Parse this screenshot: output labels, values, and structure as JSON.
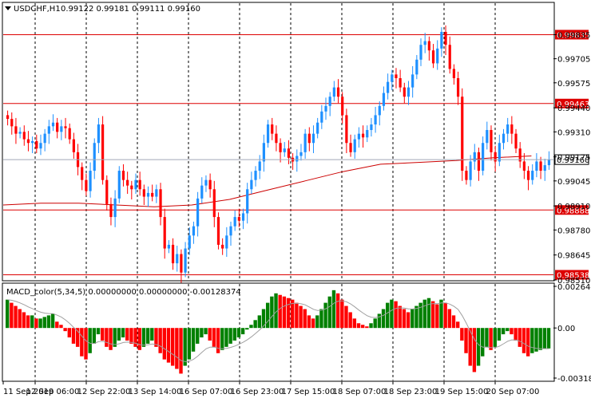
{
  "header": {
    "symbol_label": "USDCHF,H1",
    "ohlc": "0.99122 0.99181 0.99111 0.99160"
  },
  "macd": {
    "label": "MACD_color(5,34,5) 0.00000000 0.00000000 -0.00128374"
  },
  "colors": {
    "bull": "#1e90ff",
    "bear": "#ff0000",
    "ma": "#cc0000",
    "level": "#dd0000",
    "hist_up": "#008000",
    "hist_down": "#ff0000",
    "signal": "#a0a0a0",
    "grid": "#000000",
    "bid_line": "#a0a8b8"
  },
  "chart_data": [
    {
      "type": "candlestick",
      "title": "USDCHF,H1",
      "ylim": [
        0.9851,
        1.00005
      ],
      "price_ticks": [
        "0.99835",
        "0.99705",
        "0.99575",
        "0.99440",
        "0.99310",
        "0.99175",
        "0.99045",
        "0.98910",
        "0.98780",
        "0.98645",
        "0.98510"
      ],
      "time_labels": [
        "11 Sep 2019",
        "12 Sep 06:00",
        "12 Sep 22:00",
        "13 Sep 14:00",
        "16 Sep 07:00",
        "16 Sep 23:00",
        "17 Sep 15:00",
        "18 Sep 07:00",
        "18 Sep 23:00",
        "19 Sep 15:00",
        "20 Sep 07:00"
      ],
      "current_price": "0.99160",
      "levels": [
        {
          "value": 0.99835,
          "label": "0.99835"
        },
        {
          "value": 0.99463,
          "label": "0.99463"
        },
        {
          "value": 0.98888,
          "label": "0.98888"
        },
        {
          "value": 0.98538,
          "label": "0.98538"
        }
      ],
      "closes": [
        0.9938,
        0.9934,
        0.993,
        0.9931,
        0.9927,
        0.9925,
        0.9926,
        0.9922,
        0.9925,
        0.993,
        0.9934,
        0.9936,
        0.9931,
        0.9934,
        0.9933,
        0.9927,
        0.992,
        0.9912,
        0.9905,
        0.9899,
        0.991,
        0.9925,
        0.9935,
        0.9905,
        0.9892,
        0.9885,
        0.9895,
        0.991,
        0.9905,
        0.9902,
        0.99,
        0.9905,
        0.99,
        0.9896,
        0.9898,
        0.9896,
        0.99,
        0.9885,
        0.9868,
        0.987,
        0.986,
        0.9865,
        0.9855,
        0.9868,
        0.9875,
        0.988,
        0.9895,
        0.9902,
        0.9905,
        0.99,
        0.9885,
        0.987,
        0.9868,
        0.9875,
        0.988,
        0.9885,
        0.9883,
        0.9887,
        0.99,
        0.9905,
        0.991,
        0.9915,
        0.9925,
        0.9935,
        0.993,
        0.9925,
        0.992,
        0.9922,
        0.9917,
        0.9915,
        0.9918,
        0.992,
        0.993,
        0.9925,
        0.993,
        0.9936,
        0.9942,
        0.9945,
        0.995,
        0.9955,
        0.995,
        0.994,
        0.9925,
        0.992,
        0.9927,
        0.993,
        0.9928,
        0.9932,
        0.9935,
        0.994,
        0.9945,
        0.9952,
        0.9958,
        0.9962,
        0.996,
        0.9955,
        0.995,
        0.9955,
        0.9962,
        0.997,
        0.9978,
        0.998,
        0.9975,
        0.9968,
        0.9976,
        0.9985,
        0.9978,
        0.9965,
        0.996,
        0.995,
        0.991,
        0.9905,
        0.9915,
        0.992,
        0.991,
        0.9925,
        0.9932,
        0.992,
        0.9915,
        0.9925,
        0.993,
        0.9935,
        0.993,
        0.9922,
        0.9915,
        0.991,
        0.9905,
        0.991,
        0.9915,
        0.991,
        0.9913,
        0.9916
      ],
      "ma": [
        0.98915,
        0.98925,
        0.98925,
        0.98915,
        0.98905,
        0.98915,
        0.98945,
        0.98995,
        0.99045,
        0.99095,
        0.99135,
        0.99145,
        0.99155,
        0.9917,
        0.9918
      ],
      "macd_axis_ticks": [
        "0.0026447",
        "0.00",
        "-0.003183"
      ],
      "macd_values": [
        0.0018,
        0.0016,
        0.0014,
        0.0012,
        0.001,
        0.0008,
        0.0008,
        0.0006,
        0.0006,
        0.0007,
        0.0008,
        0.0009,
        0.0004,
        0.0002,
        -0.0002,
        -0.0006,
        -0.001,
        -0.0012,
        -0.0018,
        -0.002,
        -0.0016,
        -0.001,
        -0.0004,
        -0.0008,
        -0.0012,
        -0.0014,
        -0.0012,
        -0.0008,
        -0.0006,
        -0.0008,
        -0.001,
        -0.0012,
        -0.0014,
        -0.0012,
        -0.001,
        -0.0008,
        -0.0012,
        -0.0016,
        -0.002,
        -0.0022,
        -0.0024,
        -0.0026,
        -0.0029,
        -0.0024,
        -0.002,
        -0.0015,
        -0.001,
        -0.0006,
        -0.0004,
        -0.0008,
        -0.0012,
        -0.0016,
        -0.0014,
        -0.0012,
        -0.001,
        -0.0008,
        -0.0006,
        -0.0004,
        -0.0001,
        0.0002,
        0.0005,
        0.0008,
        0.0012,
        0.0016,
        0.002,
        0.0022,
        0.0021,
        0.002,
        0.0019,
        0.0018,
        0.0016,
        0.0014,
        0.0012,
        0.0008,
        0.0006,
        0.0008,
        0.0012,
        0.0016,
        0.002,
        0.0024,
        0.0022,
        0.0018,
        0.0014,
        0.001,
        0.0006,
        0.0003,
        0.0002,
        0.0001,
        0.0003,
        0.0006,
        0.0009,
        0.0012,
        0.0016,
        0.0018,
        0.0017,
        0.0014,
        0.0012,
        0.001,
        0.0012,
        0.0014,
        0.0016,
        0.0018,
        0.0019,
        0.0017,
        0.0015,
        0.0018,
        0.0016,
        0.0012,
        0.0008,
        0.0004,
        -0.0008,
        -0.0016,
        -0.0024,
        -0.0028,
        -0.0024,
        -0.0018,
        -0.0012,
        -0.0014,
        -0.0012,
        -0.0008,
        -0.0004,
        -0.0002,
        -0.0004,
        -0.0008,
        -0.0012,
        -0.0016,
        -0.0018,
        -0.0016,
        -0.0015,
        -0.0014,
        -0.0013,
        -0.0013
      ]
    }
  ]
}
